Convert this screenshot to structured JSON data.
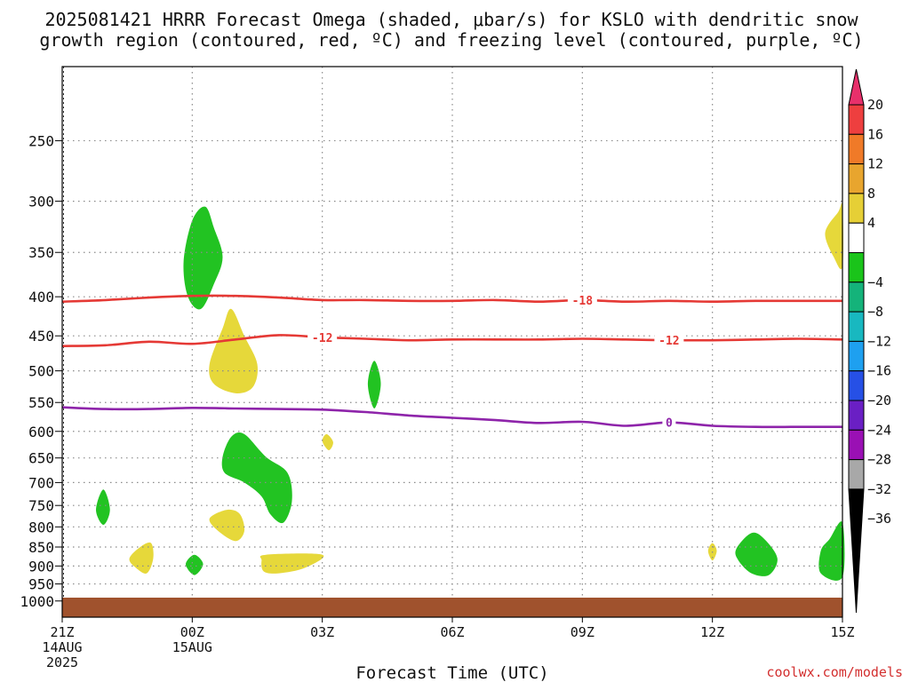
{
  "page": {
    "title_line1": "2025081421 HRRR Forecast Omega (shaded, μbar/s) for KSLO with dendritic snow",
    "title_line2": "growth region (contoured, red, ºC) and freezing level (contoured, purple, ºC)",
    "credit": "coolwx.com/models"
  },
  "chart_data": {
    "type": "contour",
    "title": "2025081421 HRRR Forecast Omega (shaded, μbar/s) for KSLO with dendritic snow growth region (contoured, red, ºC) and freezing level (contoured, purple, ºC)",
    "xlabel": "Forecast Time (UTC)",
    "ylabel": "",
    "x_range_hours": [
      0,
      18
    ],
    "y_range_hpa": [
      200,
      1050
    ],
    "y_scale": "log-pressure",
    "grid": true,
    "x_ticks": [
      {
        "hour": 0,
        "lines": [
          "21Z",
          "14AUG",
          "2025"
        ]
      },
      {
        "hour": 3,
        "lines": [
          "00Z",
          "15AUG"
        ]
      },
      {
        "hour": 6,
        "lines": [
          "03Z"
        ]
      },
      {
        "hour": 9,
        "lines": [
          "06Z"
        ]
      },
      {
        "hour": 12,
        "lines": [
          "09Z"
        ]
      },
      {
        "hour": 15,
        "lines": [
          "12Z"
        ]
      },
      {
        "hour": 18,
        "lines": [
          "15Z"
        ]
      }
    ],
    "y_ticks": [
      250,
      300,
      350,
      400,
      450,
      500,
      550,
      600,
      650,
      700,
      750,
      800,
      850,
      900,
      950,
      1000
    ],
    "colors": {
      "dgz_contour": "#e53935",
      "freezing_contour": "#8e24aa",
      "omega_positive": "#e6d83a",
      "omega_negative": "#22c322",
      "ground": "#a0522d",
      "grid": "#8a8a8a"
    },
    "contours": [
      {
        "name": "-18",
        "label": "-18",
        "color": "#e53935",
        "label_hours": [
          12
        ],
        "points": [
          [
            0,
            406
          ],
          [
            1,
            404
          ],
          [
            2,
            401
          ],
          [
            3,
            399
          ],
          [
            4,
            399
          ],
          [
            5,
            401
          ],
          [
            6,
            404
          ],
          [
            7,
            404
          ],
          [
            8,
            405
          ],
          [
            9,
            405
          ],
          [
            10,
            404
          ],
          [
            11,
            406
          ],
          [
            12,
            404
          ],
          [
            13,
            406
          ],
          [
            14,
            405
          ],
          [
            15,
            406
          ],
          [
            16,
            405
          ],
          [
            17,
            405
          ],
          [
            18,
            405
          ]
        ]
      },
      {
        "name": "-12",
        "label": "-12",
        "color": "#e53935",
        "label_hours": [
          6,
          14
        ],
        "points": [
          [
            0,
            464
          ],
          [
            1,
            463
          ],
          [
            2,
            458
          ],
          [
            3,
            461
          ],
          [
            4,
            455
          ],
          [
            5,
            449
          ],
          [
            6,
            452
          ],
          [
            7,
            454
          ],
          [
            8,
            456
          ],
          [
            9,
            455
          ],
          [
            10,
            455
          ],
          [
            11,
            455
          ],
          [
            12,
            454
          ],
          [
            13,
            455
          ],
          [
            14,
            456
          ],
          [
            15,
            456
          ],
          [
            16,
            455
          ],
          [
            17,
            454
          ],
          [
            18,
            455
          ]
        ]
      },
      {
        "name": "0",
        "label": "0",
        "color": "#8e24aa",
        "label_hours": [
          14
        ],
        "points": [
          [
            0,
            558
          ],
          [
            1,
            561
          ],
          [
            2,
            561
          ],
          [
            3,
            559
          ],
          [
            4,
            560
          ],
          [
            5,
            561
          ],
          [
            6,
            562
          ],
          [
            7,
            566
          ],
          [
            8,
            572
          ],
          [
            9,
            576
          ],
          [
            10,
            580
          ],
          [
            11,
            585
          ],
          [
            12,
            583
          ],
          [
            13,
            590
          ],
          [
            14,
            584
          ],
          [
            15,
            590
          ],
          [
            16,
            592
          ],
          [
            17,
            592
          ],
          [
            18,
            592
          ]
        ]
      }
    ],
    "omega_regions": [
      {
        "sign": "negative",
        "color": "#22c322",
        "points": [
          [
            2.8,
            360
          ],
          [
            3.0,
            318
          ],
          [
            3.3,
            305
          ],
          [
            3.5,
            325
          ],
          [
            3.7,
            355
          ],
          [
            3.5,
            385
          ],
          [
            3.2,
            415
          ],
          [
            2.9,
            400
          ]
        ]
      },
      {
        "sign": "positive",
        "color": "#e6d83a",
        "points": [
          [
            3.4,
            490
          ],
          [
            3.7,
            440
          ],
          [
            3.9,
            415
          ],
          [
            4.2,
            450
          ],
          [
            4.5,
            490
          ],
          [
            4.4,
            525
          ],
          [
            4.0,
            535
          ],
          [
            3.5,
            520
          ]
        ]
      },
      {
        "sign": "negative",
        "color": "#22c322",
        "points": [
          [
            7.05,
            520
          ],
          [
            7.2,
            485
          ],
          [
            7.35,
            520
          ],
          [
            7.2,
            560
          ]
        ]
      },
      {
        "sign": "positive",
        "color": "#e6d83a",
        "points": [
          [
            6.0,
            618
          ],
          [
            6.1,
            605
          ],
          [
            6.25,
            620
          ],
          [
            6.15,
            635
          ]
        ]
      },
      {
        "sign": "negative",
        "color": "#22c322",
        "points": [
          [
            3.7,
            648
          ],
          [
            3.9,
            610
          ],
          [
            4.2,
            605
          ],
          [
            4.7,
            648
          ],
          [
            5.2,
            680
          ],
          [
            5.3,
            740
          ],
          [
            5.1,
            790
          ],
          [
            4.8,
            770
          ],
          [
            4.6,
            730
          ],
          [
            4.2,
            700
          ],
          [
            3.75,
            680
          ]
        ]
      },
      {
        "sign": "positive",
        "color": "#e6d83a",
        "points": [
          [
            3.4,
            780
          ],
          [
            3.8,
            760
          ],
          [
            4.1,
            770
          ],
          [
            4.2,
            810
          ],
          [
            4.0,
            835
          ],
          [
            3.6,
            810
          ]
        ]
      },
      {
        "sign": "negative",
        "color": "#22c322",
        "points": [
          [
            0.78,
            760
          ],
          [
            0.95,
            715
          ],
          [
            1.1,
            760
          ],
          [
            0.95,
            795
          ]
        ]
      },
      {
        "sign": "positive",
        "color": "#e6d83a",
        "points": [
          [
            1.55,
            880
          ],
          [
            1.8,
            850
          ],
          [
            2.05,
            840
          ],
          [
            2.1,
            880
          ],
          [
            1.95,
            920
          ],
          [
            1.7,
            905
          ]
        ]
      },
      {
        "sign": "negative",
        "color": "#22c322",
        "points": [
          [
            2.85,
            895
          ],
          [
            3.05,
            870
          ],
          [
            3.25,
            895
          ],
          [
            3.05,
            925
          ]
        ]
      },
      {
        "sign": "positive",
        "color": "#e6d83a",
        "points": [
          [
            4.6,
            885
          ],
          [
            4.7,
            870
          ],
          [
            6.0,
            870
          ],
          [
            5.6,
            905
          ],
          [
            5.0,
            920
          ],
          [
            4.65,
            915
          ]
        ]
      },
      {
        "sign": "positive",
        "color": "#e6d83a",
        "points": [
          [
            14.9,
            860
          ],
          [
            15.0,
            840
          ],
          [
            15.1,
            860
          ],
          [
            15.0,
            885
          ]
        ]
      },
      {
        "sign": "negative",
        "color": "#22c322",
        "points": [
          [
            15.55,
            855
          ],
          [
            15.9,
            815
          ],
          [
            16.2,
            830
          ],
          [
            16.5,
            880
          ],
          [
            16.3,
            925
          ],
          [
            15.9,
            920
          ],
          [
            15.6,
            885
          ]
        ]
      },
      {
        "sign": "negative",
        "color": "#22c322",
        "points": [
          [
            17.5,
            860
          ],
          [
            17.7,
            830
          ],
          [
            18.0,
            790
          ],
          [
            18.0,
            930
          ],
          [
            17.5,
            920
          ]
        ]
      },
      {
        "sign": "positive",
        "color": "#e6d83a",
        "points": [
          [
            17.6,
            330
          ],
          [
            17.9,
            310
          ],
          [
            18.0,
            305
          ],
          [
            18.0,
            365
          ],
          [
            17.8,
            355
          ]
        ]
      }
    ],
    "ground": {
      "top_hpa": 990,
      "color": "#a0522d"
    },
    "colorbar": {
      "labels": [
        "20",
        "16",
        "12",
        "8",
        "4",
        "−4",
        "−8",
        "−12",
        "−16",
        "−20",
        "−24",
        "−28",
        "−32",
        "−36"
      ],
      "colors": [
        "#e8306b",
        "#ee3f3f",
        "#f07a28",
        "#e8a52e",
        "#e6cf36",
        "#ffffff",
        "#1ac41a",
        "#14b37a",
        "#18b8c0",
        "#1ea0f0",
        "#2650e6",
        "#6a1fc4",
        "#9a10b4",
        "#a8a8a8",
        "#000000"
      ]
    }
  }
}
